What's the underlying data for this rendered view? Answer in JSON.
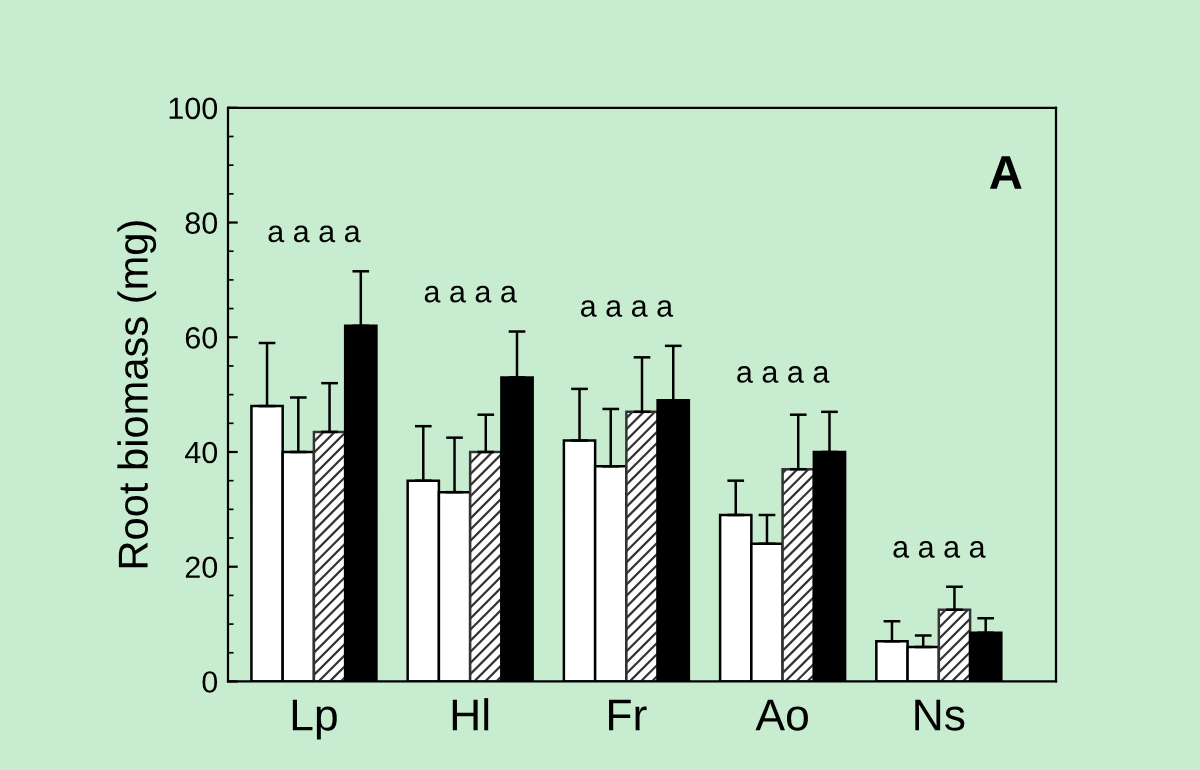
{
  "chart_data": {
    "type": "bar",
    "ylabel": "Root biomass (mg)",
    "categories": [
      "Lp",
      "Hl",
      "Fr",
      "Ao",
      "Ns"
    ],
    "series": [
      {
        "color": "#ffffff",
        "values": [
          48,
          35,
          42,
          29,
          7
        ],
        "errors": [
          11,
          9.5,
          9,
          6,
          3.5
        ]
      },
      {
        "color": "#ffffff",
        "values": [
          40,
          33,
          37.5,
          24,
          6
        ],
        "errors": [
          9.5,
          9.5,
          10,
          5,
          2
        ]
      },
      {
        "color": "#333333",
        "values": [
          43.5,
          40,
          47,
          37,
          12.5
        ],
        "errors": [
          8.5,
          6.5,
          9.5,
          9.5,
          4
        ]
      },
      {
        "color": "#000000",
        "values": [
          62,
          53,
          49,
          40,
          8.5
        ],
        "errors": [
          9.5,
          8,
          9.5,
          7,
          2.5
        ]
      }
    ],
    "ylim": [
      0,
      100
    ],
    "yticks": [
      0,
      20,
      40,
      60,
      80,
      100
    ],
    "grid": false,
    "legend": false,
    "annotations": [
      "a a a a",
      "a a a a",
      "a a a a",
      "a a a a",
      "a a a a",
      "A"
    ]
  }
}
